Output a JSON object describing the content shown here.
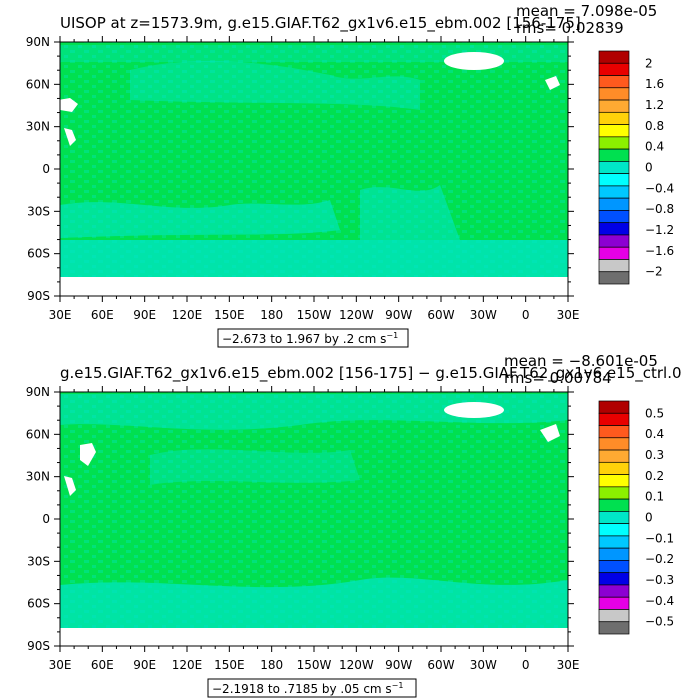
{
  "chart_data": [
    {
      "type": "heatmap",
      "title": "UISOP at z=1573.9m, g.e15.GIAF.T62_gx1v6.e15_ebm.002 [156-175]",
      "stat_mean": "mean = 7.098e-05",
      "stat_rms": "rms= 0.02839",
      "x_ticks": [
        "30E",
        "60E",
        "90E",
        "120E",
        "150E",
        "180",
        "150W",
        "120W",
        "90W",
        "60W",
        "30W",
        "0",
        "30E"
      ],
      "y_ticks": [
        "90N",
        "60N",
        "30N",
        "0",
        "30S",
        "60S",
        "90S"
      ],
      "range_label": "−2.673 to 1.967 by .2 cm s",
      "range_exp": "−1",
      "colorbar_labels": [
        "2",
        "1.6",
        "1.2",
        "0.8",
        "0.4",
        "0",
        "−0.4",
        "−0.8",
        "−1.2",
        "−1.6",
        "−2"
      ],
      "colorbar_colors": [
        "#b00000",
        "#e80000",
        "#ff5a1e",
        "#ff8c28",
        "#ffaa32",
        "#ffd20a",
        "#ffff00",
        "#8cf000",
        "#00e050",
        "#00e6c8",
        "#00ffff",
        "#00c8ff",
        "#0096ff",
        "#0050ff",
        "#0000e6",
        "#8c00d2",
        "#e600e6",
        "#c8c8c8",
        "#6e6e6e"
      ],
      "dominant_value": 0
    },
    {
      "type": "heatmap",
      "title": "g.e15.GIAF.T62_gx1v6.e15_ebm.002 [156-175] − g.e15.GIAF.T62_gx1v6.e15_ctrl.0",
      "stat_mean": "mean = −8.601e-05",
      "stat_rms": "rms= 0.00784",
      "x_ticks": [
        "30E",
        "60E",
        "90E",
        "120E",
        "150E",
        "180",
        "150W",
        "120W",
        "90W",
        "60W",
        "30W",
        "0",
        "30E"
      ],
      "y_ticks": [
        "90N",
        "60N",
        "30N",
        "0",
        "30S",
        "60S",
        "90S"
      ],
      "range_label": "−2.1918 to .7185 by .05 cm s",
      "range_exp": "−1",
      "colorbar_labels": [
        "0.5",
        "0.4",
        "0.3",
        "0.2",
        "0.1",
        "0",
        "−0.1",
        "−0.2",
        "−0.3",
        "−0.4",
        "−0.5"
      ],
      "colorbar_colors": [
        "#b00000",
        "#e80000",
        "#ff5a1e",
        "#ff8c28",
        "#ffaa32",
        "#ffd20a",
        "#ffff00",
        "#8cf000",
        "#00e050",
        "#00e6c8",
        "#00ffff",
        "#00c8ff",
        "#0096ff",
        "#0050ff",
        "#0000e6",
        "#8c00d2",
        "#e600e6",
        "#c8c8c8",
        "#6e6e6e"
      ],
      "dominant_value": 0
    }
  ],
  "colors": {
    "ocean_green": "#00e050",
    "cyan": "#00e6c8",
    "land": "#ffffff"
  }
}
